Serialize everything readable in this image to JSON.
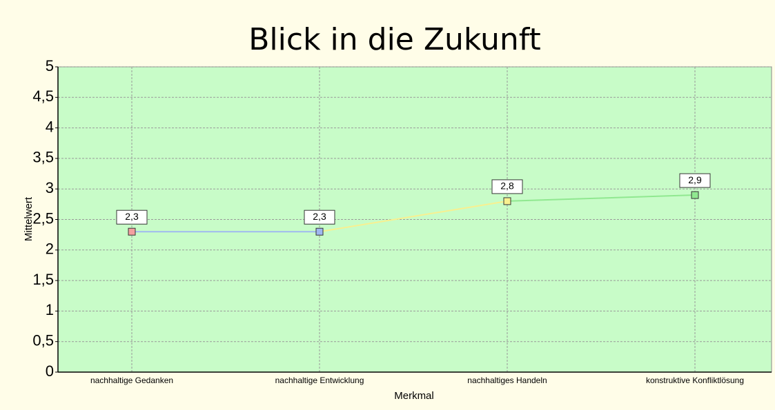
{
  "chart_data": {
    "type": "line",
    "title": "Blick in die Zukunft",
    "x_label": "Merkmal",
    "y_label": "Mittelwert",
    "categories": [
      "nachhaltige Gedanken",
      "nachhaltige Entwicklung",
      "nachhaltiges Handeln",
      "konstruktive Konfliktlösung"
    ],
    "values": [
      2.3,
      2.3,
      2.8,
      2.9
    ],
    "value_labels": [
      "2,3",
      "2,3",
      "2,8",
      "2,9"
    ],
    "point_colors": [
      "#f4a0a0",
      "#a0b8f0",
      "#f8f090",
      "#90e890"
    ],
    "line_colors": [
      "#a0b8f0",
      "#f8f090",
      "#90e890"
    ],
    "plot_background": "#c8fcc8",
    "ylim": [
      0,
      5
    ],
    "yticks": [
      0,
      {
        "value": 0.5,
        "label": "0,5"
      },
      1,
      {
        "value": 1.5,
        "label": "1,5"
      },
      2,
      {
        "value": 2.5,
        "label": "2,5"
      },
      3,
      {
        "value": 3.5,
        "label": "3,5"
      },
      4,
      {
        "value": 4.5,
        "label": "4,5"
      },
      5
    ],
    "grid": true
  }
}
